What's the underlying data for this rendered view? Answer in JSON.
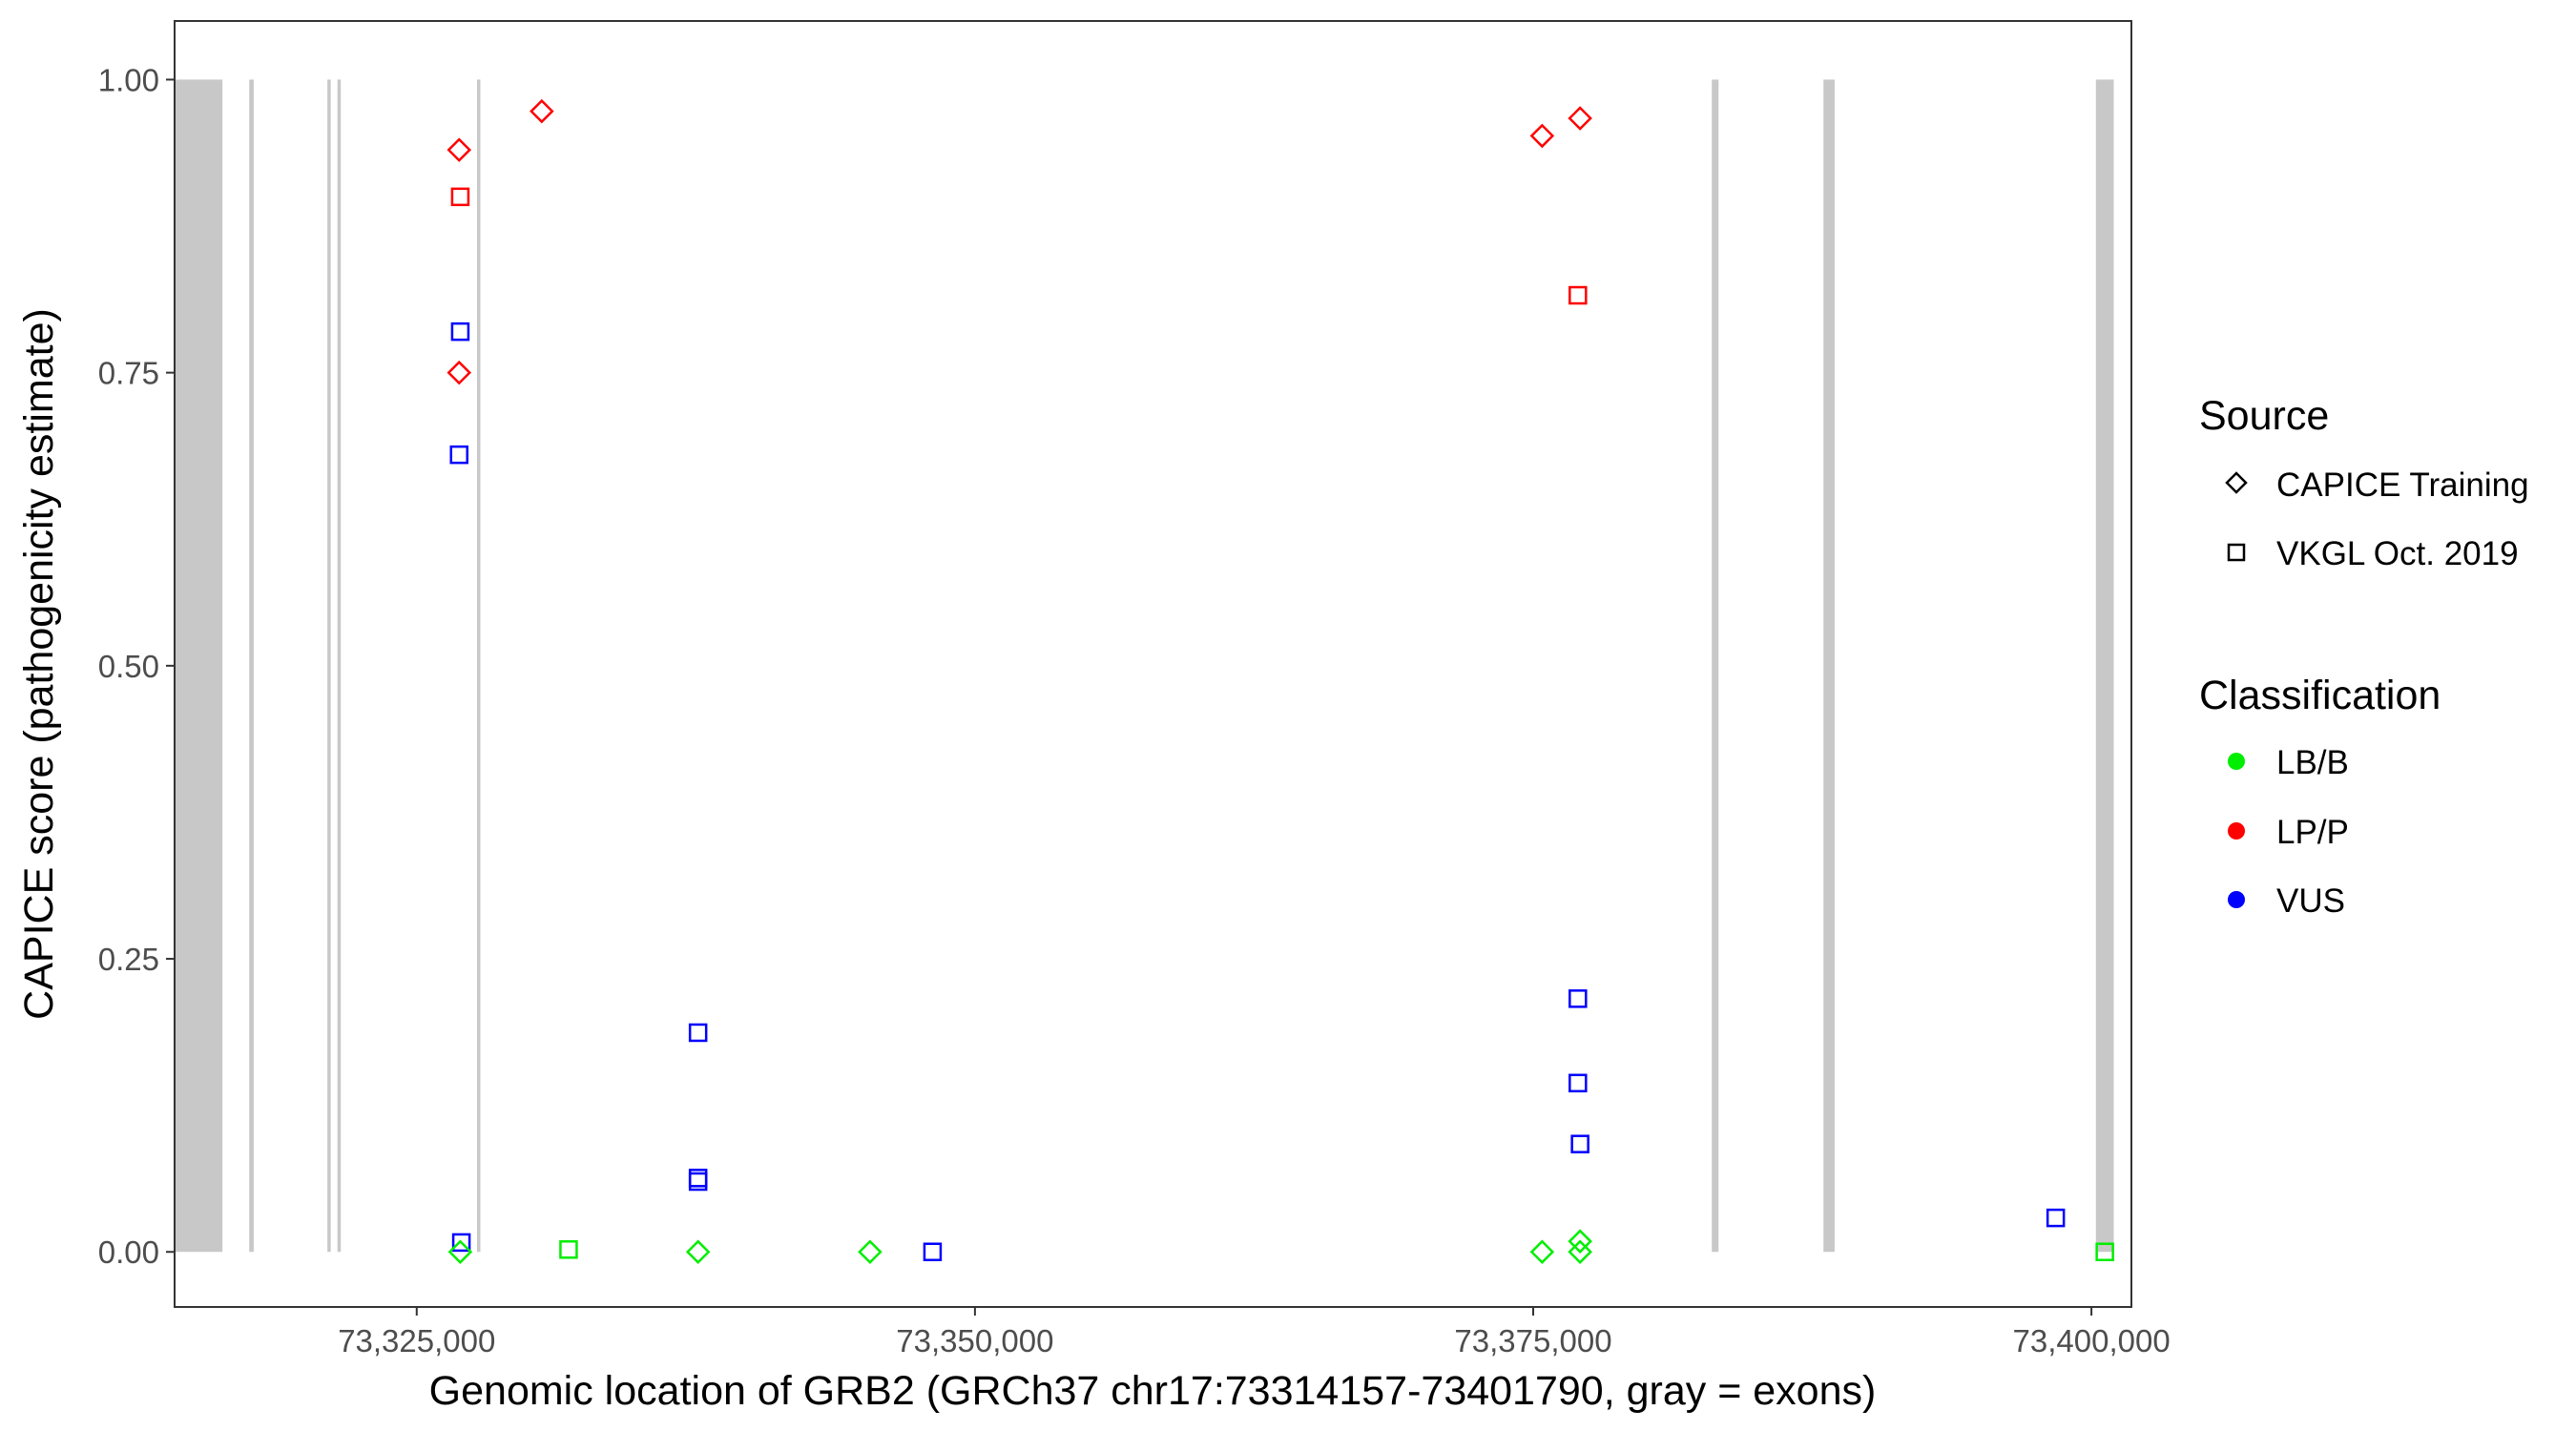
{
  "chart_data": {
    "type": "scatter",
    "xlabel": "Genomic location of GRB2 (GRCh37 chr17:73314157-73401790, gray = exons)",
    "ylabel": "CAPICE score (pathogenicity estimate)",
    "xlim": [
      73314157,
      73401790
    ],
    "ylim": [
      -0.047,
      1.05
    ],
    "x_ticks": [
      73325000,
      73350000,
      73375000,
      73400000
    ],
    "x_tick_labels": [
      "73,325,000",
      "73,350,000",
      "73,375,000",
      "73,400,000"
    ],
    "y_ticks": [
      0,
      0.25,
      0.5,
      0.75,
      1.0
    ],
    "y_tick_labels": [
      "0.00",
      "0.25",
      "0.50",
      "0.75",
      "1.00"
    ],
    "grid": false,
    "exons": [
      [
        73314157,
        73316300
      ],
      [
        73317500,
        73317700
      ],
      [
        73321000,
        73321150
      ],
      [
        73321450,
        73321600
      ],
      [
        73327700,
        73327850
      ],
      [
        73383000,
        73383300
      ],
      [
        73388000,
        73388500
      ],
      [
        73400200,
        73401000
      ]
    ],
    "exon_color": "#c8c8c8",
    "legend": {
      "position": "right",
      "source_title": "Source",
      "source_items": [
        {
          "label": "CAPICE Training",
          "shape": "diamond"
        },
        {
          "label": "VKGL Oct. 2019",
          "shape": "square"
        }
      ],
      "class_title": "Classification",
      "class_items": [
        {
          "label": "LB/B",
          "color": "#00ee00"
        },
        {
          "label": "LP/P",
          "color": "#ff0000"
        },
        {
          "label": "VUS",
          "color": "#0000ff"
        }
      ]
    },
    "colors": {
      "LB/B": "#00ee00",
      "LP/P": "#ff0000",
      "VUS": "#0000ff"
    },
    "points": [
      {
        "x": 73326900,
        "y": 0.94,
        "shape": "diamond",
        "cls": "LP/P"
      },
      {
        "x": 73326900,
        "y": 0.75,
        "shape": "diamond",
        "cls": "LP/P"
      },
      {
        "x": 73326950,
        "y": 0.9,
        "shape": "square",
        "cls": "LP/P"
      },
      {
        "x": 73326950,
        "y": 0.785,
        "shape": "square",
        "cls": "VUS"
      },
      {
        "x": 73326900,
        "y": 0.68,
        "shape": "square",
        "cls": "VUS"
      },
      {
        "x": 73327000,
        "y": 0.008,
        "shape": "square",
        "cls": "VUS"
      },
      {
        "x": 73326950,
        "y": 0.0,
        "shape": "diamond",
        "cls": "LB/B"
      },
      {
        "x": 73330600,
        "y": 0.973,
        "shape": "diamond",
        "cls": "LP/P"
      },
      {
        "x": 73331800,
        "y": 0.002,
        "shape": "square",
        "cls": "LB/B"
      },
      {
        "x": 73337600,
        "y": 0.187,
        "shape": "square",
        "cls": "VUS"
      },
      {
        "x": 73337600,
        "y": 0.063,
        "shape": "square",
        "cls": "VUS"
      },
      {
        "x": 73337600,
        "y": 0.06,
        "shape": "square",
        "cls": "VUS"
      },
      {
        "x": 73337600,
        "y": 0.0,
        "shape": "diamond",
        "cls": "LB/B"
      },
      {
        "x": 73345300,
        "y": 0.0,
        "shape": "diamond",
        "cls": "LB/B"
      },
      {
        "x": 73348100,
        "y": 0.0,
        "shape": "square",
        "cls": "VUS"
      },
      {
        "x": 73375400,
        "y": 0.952,
        "shape": "diamond",
        "cls": "LP/P"
      },
      {
        "x": 73377100,
        "y": 0.967,
        "shape": "diamond",
        "cls": "LP/P"
      },
      {
        "x": 73377000,
        "y": 0.816,
        "shape": "square",
        "cls": "LP/P"
      },
      {
        "x": 73377000,
        "y": 0.216,
        "shape": "square",
        "cls": "VUS"
      },
      {
        "x": 73377000,
        "y": 0.144,
        "shape": "square",
        "cls": "VUS"
      },
      {
        "x": 73377100,
        "y": 0.092,
        "shape": "square",
        "cls": "VUS"
      },
      {
        "x": 73375400,
        "y": 0.0,
        "shape": "diamond",
        "cls": "LB/B"
      },
      {
        "x": 73377100,
        "y": 0.009,
        "shape": "diamond",
        "cls": "LB/B"
      },
      {
        "x": 73377100,
        "y": 0.0,
        "shape": "diamond",
        "cls": "LB/B"
      },
      {
        "x": 73398400,
        "y": 0.029,
        "shape": "square",
        "cls": "VUS"
      },
      {
        "x": 73400600,
        "y": 0.0,
        "shape": "square",
        "cls": "LB/B"
      }
    ]
  }
}
